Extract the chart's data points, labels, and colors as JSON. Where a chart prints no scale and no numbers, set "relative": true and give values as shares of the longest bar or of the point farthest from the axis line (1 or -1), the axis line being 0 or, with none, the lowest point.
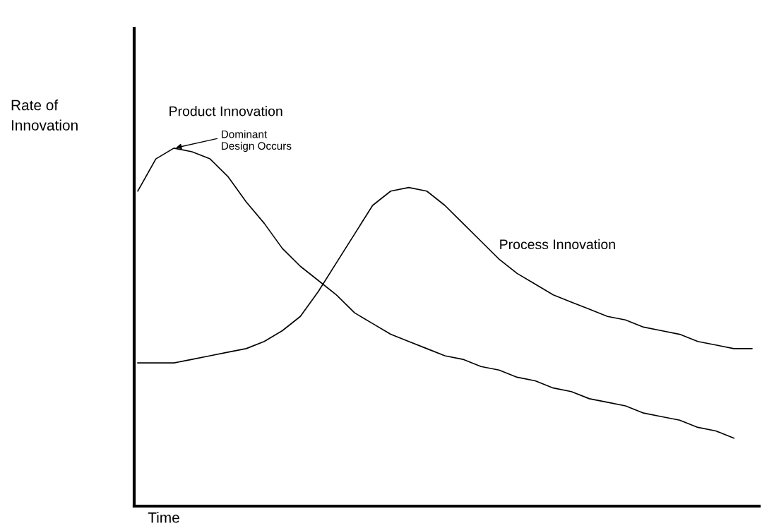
{
  "chart_data": {
    "type": "line",
    "relative": true,
    "xlabel": "Time",
    "ylabel": "Rate of Innovation",
    "categories": [
      null,
      null,
      null,
      null,
      null,
      null,
      null,
      null,
      null,
      null,
      null,
      null,
      null,
      null,
      null,
      null,
      null,
      null,
      null,
      null,
      null,
      null,
      null,
      null,
      null,
      null,
      null,
      null,
      null,
      null,
      null,
      null,
      null,
      null,
      null
    ],
    "series": [
      {
        "name": "Product Innovation",
        "color": "#000000",
        "values": [
          0.88,
          0.97,
          1.0,
          0.99,
          0.97,
          0.92,
          0.85,
          0.79,
          0.72,
          0.67,
          0.63,
          0.59,
          0.54,
          0.51,
          0.48,
          0.46,
          0.44,
          0.42,
          0.41,
          0.39,
          0.38,
          0.36,
          0.35,
          0.33,
          0.32,
          0.3,
          0.29,
          0.28,
          0.26,
          0.25,
          0.24,
          0.22,
          0.21,
          0.19,
          null
        ]
      },
      {
        "name": "Process Innovation",
        "color": "#000000",
        "values": [
          0.4,
          0.4,
          0.4,
          0.41,
          0.42,
          0.43,
          0.44,
          0.46,
          0.49,
          0.53,
          0.6,
          0.68,
          0.76,
          0.84,
          0.88,
          0.89,
          0.88,
          0.84,
          0.79,
          0.74,
          0.69,
          0.65,
          0.62,
          0.59,
          0.57,
          0.55,
          0.53,
          0.52,
          0.5,
          0.49,
          0.48,
          0.46,
          0.45,
          0.44,
          0.44
        ]
      }
    ],
    "annotations": [
      "Dominant Design Occurs"
    ],
    "marker": "none",
    "line_style": "solid"
  }
}
